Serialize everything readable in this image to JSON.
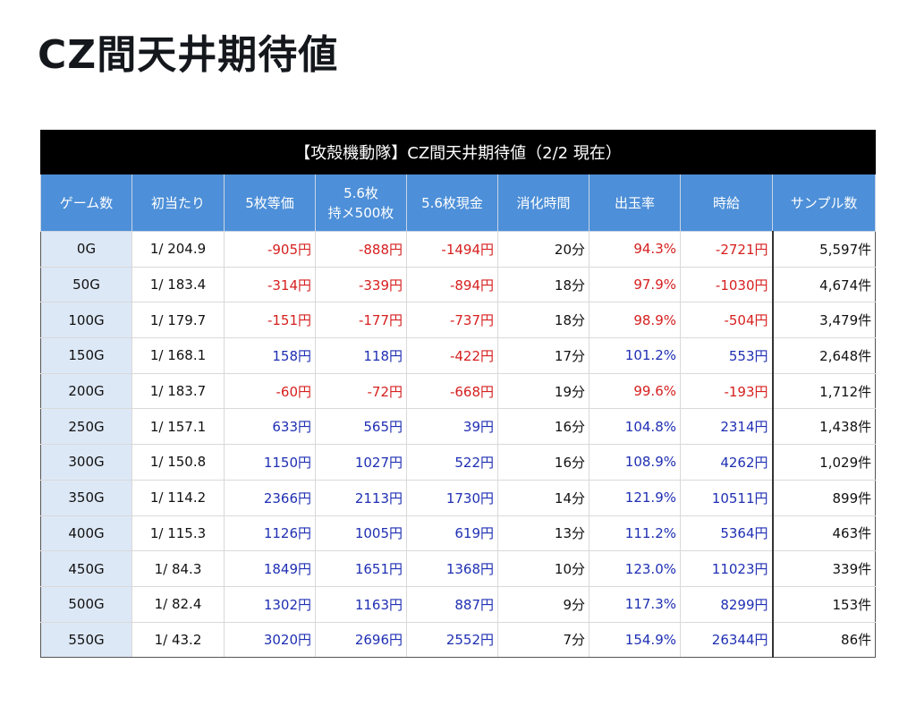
{
  "page_title": "CZ間天井期待値",
  "table": {
    "caption": "【攻殻機動隊】CZ間天井期待値（2/2 現在）",
    "headers": [
      {
        "line1": "ゲーム数",
        "line2": ""
      },
      {
        "line1": "初当たり",
        "line2": ""
      },
      {
        "line1": "5枚等価",
        "line2": ""
      },
      {
        "line1": "5.6枚",
        "line2": "持メ500枚"
      },
      {
        "line1": "5.6枚現金",
        "line2": ""
      },
      {
        "line1": "消化時間",
        "line2": ""
      },
      {
        "line1": "出玉率",
        "line2": ""
      },
      {
        "line1": "時給",
        "line2": ""
      },
      {
        "line1": "サンプル数",
        "line2": ""
      }
    ],
    "colors": {
      "negative": "#d61f1f",
      "positive": "#1f2fb3",
      "header_bg": "#4d8fd8",
      "caption_bg": "#000000",
      "games_bg": "#dde8f6"
    },
    "rows": [
      {
        "games": "0G",
        "first_hit": "1/ 204.9",
        "eq5": "-905円",
        "mochi56": "-888円",
        "cash56": "-1494円",
        "time": "20分",
        "payout": "94.3%",
        "hourly": "-2721円",
        "samples": "5,597件"
      },
      {
        "games": "50G",
        "first_hit": "1/ 183.4",
        "eq5": "-314円",
        "mochi56": "-339円",
        "cash56": "-894円",
        "time": "18分",
        "payout": "97.9%",
        "hourly": "-1030円",
        "samples": "4,674件"
      },
      {
        "games": "100G",
        "first_hit": "1/ 179.7",
        "eq5": "-151円",
        "mochi56": "-177円",
        "cash56": "-737円",
        "time": "18分",
        "payout": "98.9%",
        "hourly": "-504円",
        "samples": "3,479件"
      },
      {
        "games": "150G",
        "first_hit": "1/ 168.1",
        "eq5": "158円",
        "mochi56": "118円",
        "cash56": "-422円",
        "time": "17分",
        "payout": "101.2%",
        "hourly": "553円",
        "samples": "2,648件"
      },
      {
        "games": "200G",
        "first_hit": "1/ 183.7",
        "eq5": "-60円",
        "mochi56": "-72円",
        "cash56": "-668円",
        "time": "19分",
        "payout": "99.6%",
        "hourly": "-193円",
        "samples": "1,712件"
      },
      {
        "games": "250G",
        "first_hit": "1/ 157.1",
        "eq5": "633円",
        "mochi56": "565円",
        "cash56": "39円",
        "time": "16分",
        "payout": "104.8%",
        "hourly": "2314円",
        "samples": "1,438件"
      },
      {
        "games": "300G",
        "first_hit": "1/ 150.8",
        "eq5": "1150円",
        "mochi56": "1027円",
        "cash56": "522円",
        "time": "16分",
        "payout": "108.9%",
        "hourly": "4262円",
        "samples": "1,029件"
      },
      {
        "games": "350G",
        "first_hit": "1/ 114.2",
        "eq5": "2366円",
        "mochi56": "2113円",
        "cash56": "1730円",
        "time": "14分",
        "payout": "121.9%",
        "hourly": "10511円",
        "samples": "899件"
      },
      {
        "games": "400G",
        "first_hit": "1/ 115.3",
        "eq5": "1126円",
        "mochi56": "1005円",
        "cash56": "619円",
        "time": "13分",
        "payout": "111.2%",
        "hourly": "5364円",
        "samples": "463件"
      },
      {
        "games": "450G",
        "first_hit": "1/ 84.3",
        "eq5": "1849円",
        "mochi56": "1651円",
        "cash56": "1368円",
        "time": "10分",
        "payout": "123.0%",
        "hourly": "11023円",
        "samples": "339件"
      },
      {
        "games": "500G",
        "first_hit": "1/ 82.4",
        "eq5": "1302円",
        "mochi56": "1163円",
        "cash56": "887円",
        "time": "9分",
        "payout": "117.3%",
        "hourly": "8299円",
        "samples": "153件"
      },
      {
        "games": "550G",
        "first_hit": "1/ 43.2",
        "eq5": "3020円",
        "mochi56": "2696円",
        "cash56": "2552円",
        "time": "7分",
        "payout": "154.9%",
        "hourly": "26344円",
        "samples": "86件"
      }
    ]
  }
}
